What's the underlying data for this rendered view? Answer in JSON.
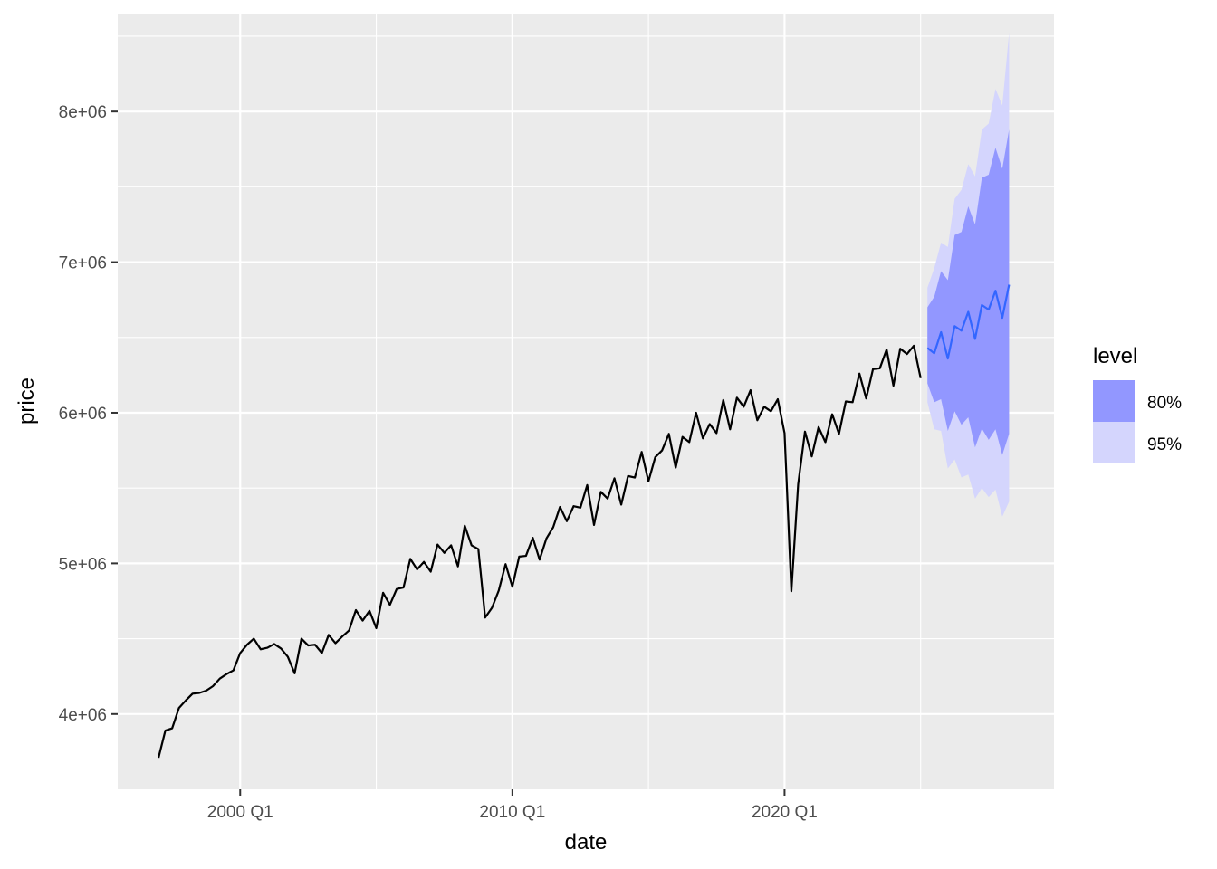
{
  "chart_data": {
    "type": "line",
    "xlabel": "date",
    "ylabel": "price",
    "x_ticks": [
      {
        "label": "2000 Q1",
        "value": 2000.0
      },
      {
        "label": "2010 Q1",
        "value": 2010.0
      },
      {
        "label": "2020 Q1",
        "value": 2020.0
      }
    ],
    "y_ticks": [
      {
        "label": "4e+06",
        "value": 4000000
      },
      {
        "label": "5e+06",
        "value": 5000000
      },
      {
        "label": "6e+06",
        "value": 6000000
      },
      {
        "label": "7e+06",
        "value": 7000000
      },
      {
        "label": "8e+06",
        "value": 8000000
      }
    ],
    "xlim": [
      1995.5,
      2029.9
    ],
    "ylim": [
      3500000,
      8650000
    ],
    "grid": true,
    "legend": {
      "title": "level",
      "position": "right",
      "entries": [
        {
          "label": "80%",
          "color": "#9297ff"
        },
        {
          "label": "95%",
          "color": "#d4d5fd"
        }
      ]
    },
    "colors": {
      "panel": "#ebebeb",
      "grid": "#ffffff",
      "history_line": "#000000",
      "forecast_line": "#3366ff",
      "band_80": "#9297ff",
      "band_95": "#d4d5fd"
    },
    "series": [
      {
        "role": "history",
        "x": [
          1997.0,
          1997.25,
          1997.5,
          1997.75,
          1998.0,
          1998.25,
          1998.5,
          1998.75,
          1999.0,
          1999.25,
          1999.5,
          1999.75,
          2000.0,
          2000.25,
          2000.5,
          2000.75,
          2001.0,
          2001.25,
          2001.5,
          2001.75,
          2002.0,
          2002.25,
          2002.5,
          2002.75,
          2003.0,
          2003.25,
          2003.5,
          2003.75,
          2004.0,
          2004.25,
          2004.5,
          2004.75,
          2005.0,
          2005.25,
          2005.5,
          2005.75,
          2006.0,
          2006.25,
          2006.5,
          2006.75,
          2007.0,
          2007.25,
          2007.5,
          2007.75,
          2008.0,
          2008.25,
          2008.5,
          2008.75,
          2009.0,
          2009.25,
          2009.5,
          2009.75,
          2010.0,
          2010.25,
          2010.5,
          2010.75,
          2011.0,
          2011.25,
          2011.5,
          2011.75,
          2012.0,
          2012.25,
          2012.5,
          2012.75,
          2013.0,
          2013.25,
          2013.5,
          2013.75,
          2014.0,
          2014.25,
          2014.5,
          2014.75,
          2015.0,
          2015.25,
          2015.5,
          2015.75,
          2016.0,
          2016.25,
          2016.5,
          2016.75,
          2017.0,
          2017.25,
          2017.5,
          2017.75,
          2018.0,
          2018.25,
          2018.5,
          2018.75,
          2019.0,
          2019.25,
          2019.5,
          2019.75,
          2020.0,
          2020.25,
          2020.5,
          2020.75,
          2021.0,
          2021.25,
          2021.5,
          2021.75,
          2022.0,
          2022.25,
          2022.5,
          2022.75,
          2023.0,
          2023.25,
          2023.5,
          2023.75,
          2024.0,
          2024.25,
          2024.5,
          2024.75,
          2025.0
        ],
        "values": [
          3710000,
          3890000,
          3905000,
          4040000,
          4090000,
          4135000,
          4140000,
          4155000,
          4185000,
          4235000,
          4265000,
          4290000,
          4405000,
          4460000,
          4500000,
          4430000,
          4440000,
          4465000,
          4435000,
          4380000,
          4270000,
          4500000,
          4455000,
          4460000,
          4405000,
          4525000,
          4470000,
          4515000,
          4555000,
          4690000,
          4620000,
          4685000,
          4570000,
          4805000,
          4725000,
          4830000,
          4840000,
          5030000,
          4960000,
          5010000,
          4945000,
          5125000,
          5070000,
          5120000,
          4980000,
          5250000,
          5120000,
          5095000,
          4640000,
          4705000,
          4820000,
          4995000,
          4845000,
          5045000,
          5050000,
          5170000,
          5025000,
          5165000,
          5240000,
          5375000,
          5280000,
          5380000,
          5370000,
          5520000,
          5255000,
          5475000,
          5430000,
          5565000,
          5390000,
          5580000,
          5570000,
          5740000,
          5545000,
          5705000,
          5750000,
          5860000,
          5635000,
          5840000,
          5805000,
          6000000,
          5830000,
          5925000,
          5865000,
          6085000,
          5890000,
          6100000,
          6040000,
          6150000,
          5950000,
          6040000,
          6010000,
          6090000,
          5865000,
          4815000,
          5525000,
          5875000,
          5710000,
          5905000,
          5805000,
          5990000,
          5860000,
          6075000,
          6070000,
          6260000,
          6095000,
          6290000,
          6295000,
          6420000,
          6180000,
          6425000,
          6390000,
          6445000,
          6230000
        ]
      },
      {
        "role": "forecast",
        "x": [
          2025.25,
          2025.5,
          2025.75,
          2026.0,
          2026.25,
          2026.5,
          2026.75,
          2027.0,
          2027.25,
          2027.5,
          2027.75,
          2028.0,
          2028.25
        ],
        "values": [
          6430000,
          6395000,
          6535000,
          6360000,
          6575000,
          6545000,
          6670000,
          6490000,
          6715000,
          6685000,
          6810000,
          6630000,
          6850000
        ],
        "pi80_lower": [
          6195000,
          6070000,
          6090000,
          5880000,
          6010000,
          5920000,
          5970000,
          5770000,
          5895000,
          5820000,
          5890000,
          5720000,
          5860000
        ],
        "pi80_upper": [
          6700000,
          6770000,
          6940000,
          6880000,
          7180000,
          7200000,
          7370000,
          7250000,
          7560000,
          7580000,
          7760000,
          7620000,
          7880000
        ],
        "pi95_lower": [
          6070000,
          5890000,
          5880000,
          5630000,
          5690000,
          5570000,
          5590000,
          5430000,
          5500000,
          5440000,
          5490000,
          5310000,
          5410000
        ],
        "pi95_upper": [
          6830000,
          6960000,
          7130000,
          7100000,
          7420000,
          7480000,
          7650000,
          7570000,
          7880000,
          7920000,
          8150000,
          8040000,
          8520000
        ]
      }
    ]
  }
}
